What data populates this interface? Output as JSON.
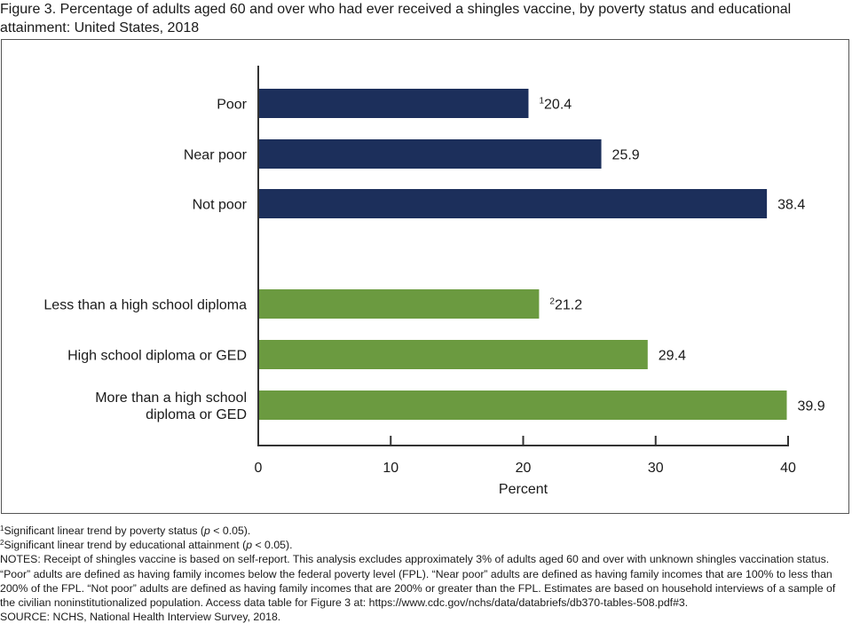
{
  "title": "Figure 3. Percentage of adults aged 60 and over who had ever received a shingles vaccine, by poverty status and educational attainment: United States, 2018",
  "chart_data": {
    "type": "bar",
    "orientation": "horizontal",
    "title": "Figure 3. Percentage of adults aged 60 and over who had ever received a shingles vaccine, by poverty status and educational attainment: United States, 2018",
    "xlabel": "Percent",
    "ylabel": "",
    "xlim": [
      0,
      40
    ],
    "xticks": [
      "0",
      "10",
      "20",
      "30",
      "40"
    ],
    "grid": false,
    "groups": [
      {
        "name": "Poverty status",
        "color": "#1c2f5b",
        "categories": [
          "Poor",
          "Near poor",
          "Not poor"
        ],
        "values": [
          20.4,
          25.9,
          38.4
        ],
        "labels": [
          "20.4",
          "25.9",
          "38.4"
        ],
        "superscripts": [
          "1",
          "",
          ""
        ]
      },
      {
        "name": "Educational attainment",
        "color": "#6b9a40",
        "categories": [
          "Less than a high school diploma",
          "High school diploma or GED",
          "More than a high school diploma or GED"
        ],
        "category_lines": [
          [
            "Less than a high school diploma"
          ],
          [
            "High school diploma or GED"
          ],
          [
            "More than a high school",
            "diploma or GED"
          ]
        ],
        "values": [
          21.2,
          29.4,
          39.9
        ],
        "labels": [
          "21.2",
          "29.4",
          "39.9"
        ],
        "superscripts": [
          "2",
          "",
          ""
        ]
      }
    ]
  },
  "footnotes": {
    "note1_sup": "1",
    "note1_a": "Significant linear trend by poverty status (",
    "note1_p": "p",
    "note1_b": " < 0.05).",
    "note2_sup": "2",
    "note2_a": "Significant linear trend by educational attainment (",
    "note2_p": "p",
    "note2_b": " < 0.05).",
    "notes": "NOTES: Receipt of shingles vaccine is based on self-report. This analysis excludes approximately 3% of adults aged 60 and over with unknown shingles vaccination status. “Poor” adults are defined as having family incomes below the federal poverty level (FPL). “Near poor” adults are defined as having family incomes that are 100% to less than 200% of the FPL. “Not poor” adults are defined as having family incomes that are 200% or greater than the FPL. Estimates are based on household interviews of a sample of the civilian noninstitutionalized population. Access data table for Figure 3 at: ",
    "link": "https://www.cdc.gov/nchs/data/databriefs/db370-tables-508.pdf#3",
    "link_end": ".",
    "source": "SOURCE: NCHS, National Health Interview Survey, 2018."
  }
}
